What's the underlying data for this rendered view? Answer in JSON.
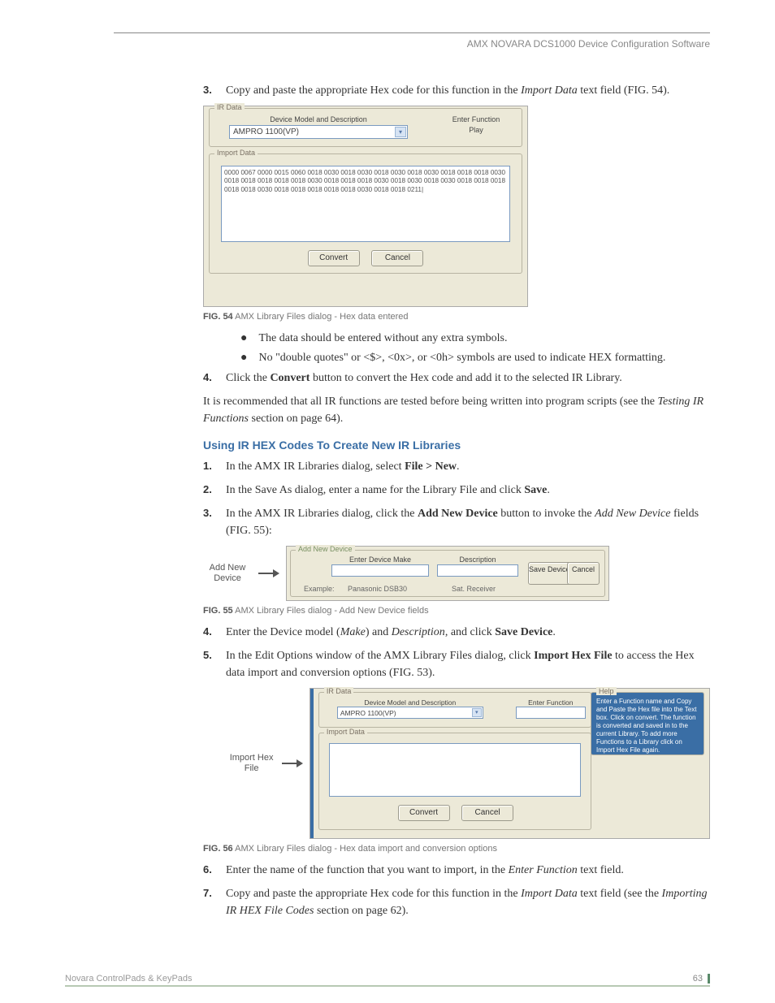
{
  "header": {
    "title": "AMX NOVARA DCS1000 Device Configuration Software"
  },
  "s3": {
    "num": "3.",
    "pre": "Copy and paste the appropriate Hex code for this function in the ",
    "it": "Import Data",
    "post": " text field (FIG. 54)."
  },
  "fig54": {
    "ir_label": "IR Data",
    "model_hdr": "Device Model and Description",
    "model_val": "AMPRO 1100(VP)",
    "func_hdr": "Enter Function",
    "func_val": "Play",
    "import_label": "Import Data",
    "hex": "0000 0067 0000 0015 0060 0018 0030 0018 0030 0018 0030 0018 0030 0018 0018 0018 0030 0018 0018 0018 0018 0018 0030 0018 0018 0018 0030 0018 0030 0018 0030 0018 0018 0018 0018 0018 0030 0018 0018 0018 0018 0018 0030 0018 0018 0211|",
    "convert": "Convert",
    "cancel": "Cancel",
    "caption_b": "FIG. 54",
    "caption": " AMX Library Files dialog - Hex data entered"
  },
  "b1": "The data should be entered without any extra symbols.",
  "b2": "No \"double quotes\" or <$>, <0x>, or <0h> symbols are used to indicate HEX formatting.",
  "s4": {
    "num": "4.",
    "pre": "Click the ",
    "b": "Convert",
    "post": " button to convert the Hex code and add it to the selected IR Library."
  },
  "rec": {
    "pre": "It is recommended that all IR functions are tested before being written into program scripts (see the ",
    "it": "Testing IR Functions",
    "post": " section on page 64)."
  },
  "section": "Using IR HEX Codes To Create New IR Libraries",
  "n1": {
    "num": "1.",
    "pre": "In the AMX IR Libraries dialog, select ",
    "b": "File > New",
    "post": "."
  },
  "n2": {
    "num": "2.",
    "pre": "In the Save As dialog, enter a name for the Library File and click ",
    "b": "Save",
    "post": "."
  },
  "n3": {
    "num": "3.",
    "pre": "In the AMX IR Libraries dialog, click the ",
    "b": "Add New Device",
    "mid": " button to invoke the ",
    "it": "Add New Device",
    "post": " fields (FIG. 55):"
  },
  "callout55": {
    "l1": "Add New",
    "l2": "Device"
  },
  "fig55": {
    "grp": "Add New Device",
    "make_hdr": "Enter Device Make",
    "desc_hdr": "Description",
    "save": "Save Device",
    "cancel": "Cancel",
    "ex_lbl": "Example:",
    "ex1": "Panasonic DSB30",
    "ex2": "Sat.  Receiver",
    "caption_b": "FIG. 55",
    "caption": " AMX Library Files dialog - Add New Device fields"
  },
  "n4": {
    "num": "4.",
    "pre": "Enter the Device model (",
    "it1": "Make",
    "mid": ") and ",
    "it2": "Description",
    "mid2": ", and click ",
    "b": "Save Device",
    "post": "."
  },
  "n5": {
    "num": "5.",
    "pre": "In the Edit Options window of the AMX Library Files dialog, click ",
    "b": "Import Hex File",
    "post": " to access the Hex data import and conversion options (FIG. 53)."
  },
  "callout56": {
    "l1": "Import Hex",
    "l2": "File"
  },
  "fig56": {
    "ir_label": "IR Data",
    "model_hdr": "Device Model and Description",
    "model_val": "AMPRO 1100(VP)",
    "func_hdr": "Enter Function",
    "import_label": "Import Data",
    "convert": "Convert",
    "cancel": "Cancel",
    "help_label": "Help",
    "help_text": "Enter a Function name and Copy and Paste the Hex file into the Text box. Click on convert. The function is converted and saved in to the current Library. To add more Functions to a Library click on Import Hex File again.",
    "caption_b": "FIG. 56",
    "caption": " AMX Library Files dialog - Hex data import and conversion options"
  },
  "n6": {
    "num": "6.",
    "pre": "Enter the name of the function that you want to import, in the ",
    "it": "Enter Function",
    "post": " text field."
  },
  "n7": {
    "num": "7.",
    "pre": "Copy and paste the appropriate Hex code for this function in the ",
    "it1": "Import Data",
    "mid": " text field (see the ",
    "it2": "Importing IR HEX File Codes",
    "post": " section on page 62)."
  },
  "footer": {
    "left": "Novara ControlPads & KeyPads",
    "page": "63"
  }
}
